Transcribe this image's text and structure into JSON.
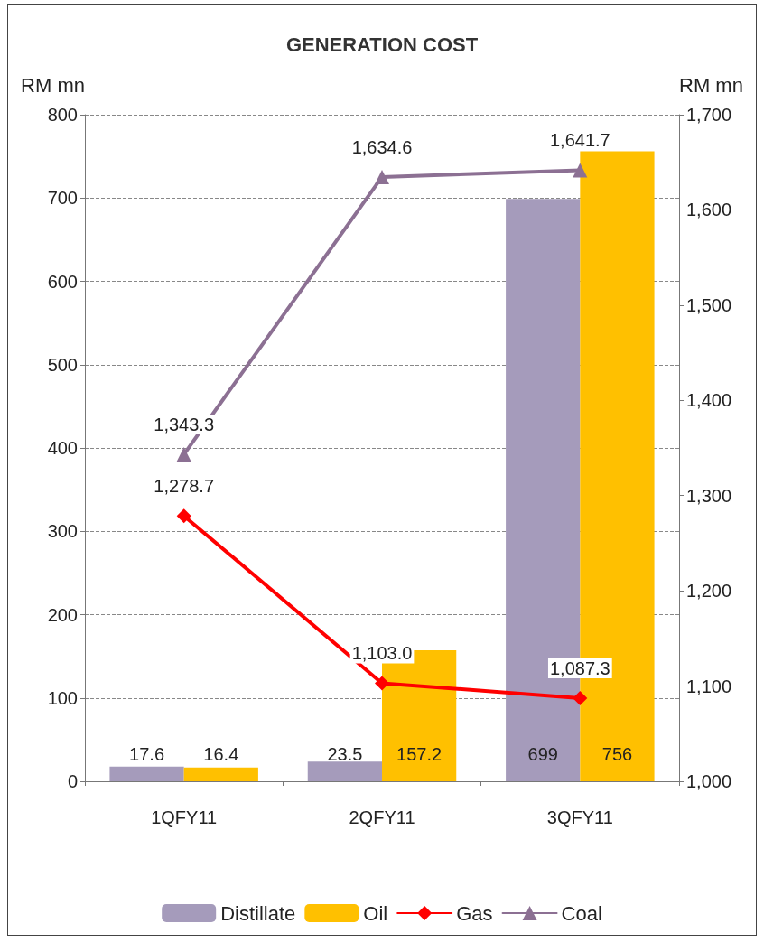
{
  "chart_data": {
    "type": "bar",
    "title": "GENERATION COST",
    "ylabel": "RM mn",
    "y2label": "RM mn",
    "categories": [
      "1QFY11",
      "2QFY11",
      "3QFY11"
    ],
    "series": [
      {
        "name": "Distillate",
        "type": "bar",
        "color": "#a59bbb",
        "values": [
          17.6,
          23.5,
          699
        ],
        "value_labels": [
          "17.6",
          "23.5",
          "699"
        ]
      },
      {
        "name": "Oil",
        "type": "bar",
        "color": "#ffc000",
        "values": [
          16.4,
          157.2,
          756
        ],
        "value_labels": [
          "16.4",
          "157.2",
          "756"
        ]
      },
      {
        "name": "Gas",
        "type": "line",
        "axis": "y2",
        "color": "#ff0000",
        "marker": "diamond",
        "values": [
          1278.7,
          1103.0,
          1087.3
        ],
        "value_labels": [
          "1,278.7",
          "1,103.0",
          "1,087.3"
        ]
      },
      {
        "name": "Coal",
        "type": "line",
        "axis": "y2",
        "color": "#8c7093",
        "marker": "triangle",
        "values": [
          1343.3,
          1634.6,
          1641.7
        ],
        "value_labels": [
          "1,343.3",
          "1,634.6",
          "1,641.7"
        ]
      }
    ],
    "ylim": [
      0,
      800
    ],
    "yticks": [
      0,
      100,
      200,
      300,
      400,
      500,
      600,
      700,
      800
    ],
    "y2lim": [
      1000,
      1700
    ],
    "y2ticks": [
      {
        "value": 1000,
        "label": "1,000"
      },
      {
        "value": 1100,
        "label": "1,100"
      },
      {
        "value": 1200,
        "label": "1,200"
      },
      {
        "value": 1300,
        "label": "1,300"
      },
      {
        "value": 1400,
        "label": "1,400"
      },
      {
        "value": 1500,
        "label": "1,500"
      },
      {
        "value": 1600,
        "label": "1,600"
      },
      {
        "value": 1700,
        "label": "1,700"
      }
    ],
    "grid": "y",
    "legend": "bottom"
  }
}
